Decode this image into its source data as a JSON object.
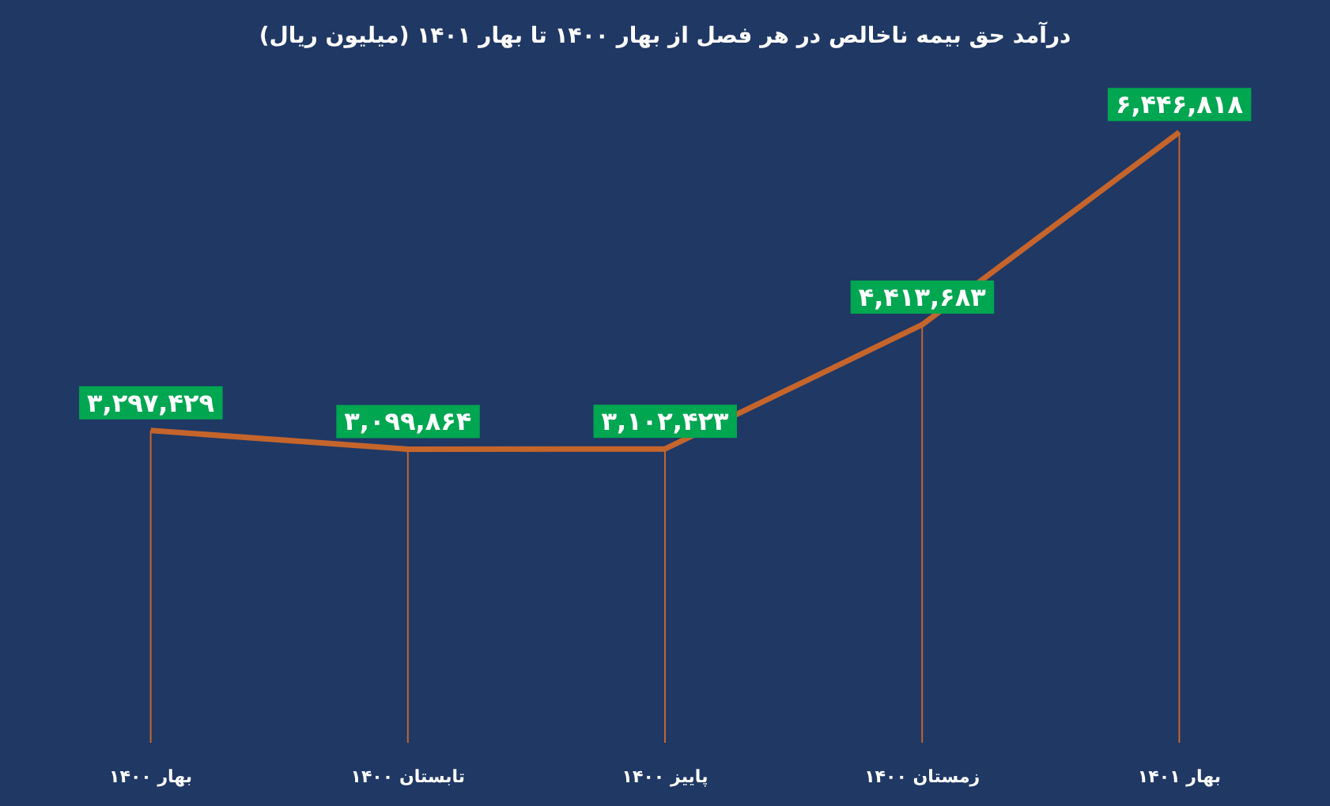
{
  "chart_data": {
    "type": "line",
    "title": "درآمد حق بیمه ناخالص در هر فصل از بهار ۱۴۰۰ تا بهار ۱۴۰۱ (میلیون ریال)",
    "categories": [
      "بهار ۱۴۰۰",
      "تابستان ۱۴۰۰",
      "پاییز ۱۴۰۰",
      "زمستان ۱۴۰۰",
      "بهار ۱۴۰۱"
    ],
    "series": [
      {
        "color": "#c5652b",
        "values": [
          3297429,
          3099864,
          3102423,
          4413683,
          6446818
        ],
        "value_labels": [
          "۳,۲۹۷,۴۲۹",
          "۳,۰۹۹,۸۶۴",
          "۳,۱۰۲,۴۲۳",
          "۴,۴۱۳,۶۸۳",
          "۶,۴۴۶,۸۱۸"
        ]
      }
    ],
    "line_style": "solid",
    "grid": "x"
  }
}
